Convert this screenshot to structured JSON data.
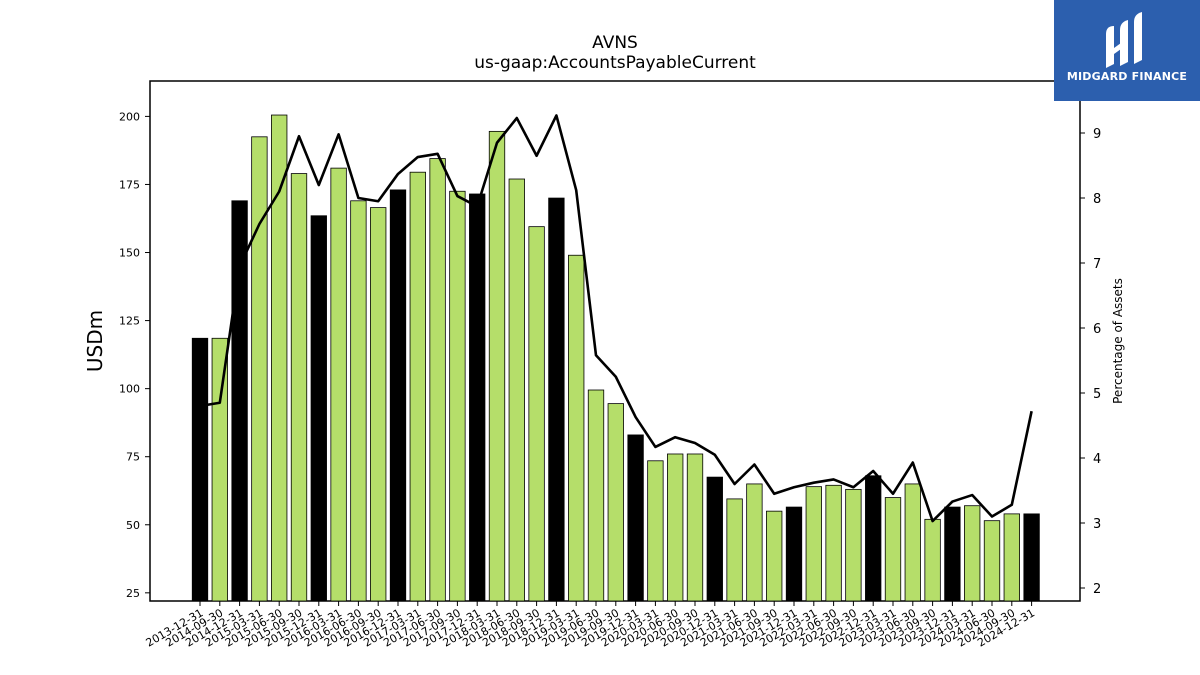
{
  "chart_data": {
    "type": "bar+line",
    "title": "AVNS",
    "subtitle": "us-gaap:AccountsPayableCurrent",
    "ylabel": "USDm",
    "y2label": "Percentage of Assets",
    "ylim": [
      22,
      213
    ],
    "y2lim": [
      1.8,
      9.8
    ],
    "yticks": [
      25,
      50,
      75,
      100,
      125,
      150,
      175,
      200
    ],
    "y2ticks": [
      2,
      3,
      4,
      5,
      6,
      7,
      8,
      9
    ],
    "categories": [
      "2013-12-31",
      "2014-09-30",
      "2014-12-31",
      "2015-03-31",
      "2015-06-30",
      "2015-09-30",
      "2015-12-31",
      "2016-03-31",
      "2016-06-30",
      "2016-09-30",
      "2016-12-31",
      "2017-03-31",
      "2017-06-30",
      "2017-09-30",
      "2017-12-31",
      "2018-03-31",
      "2018-06-30",
      "2018-09-30",
      "2018-12-31",
      "2019-03-31",
      "2019-06-30",
      "2019-09-30",
      "2019-12-31",
      "2020-03-31",
      "2020-06-30",
      "2020-09-30",
      "2020-12-31",
      "2021-03-31",
      "2021-06-30",
      "2021-09-30",
      "2021-12-31",
      "2022-03-31",
      "2022-06-30",
      "2022-09-30",
      "2022-12-31",
      "2023-03-31",
      "2023-06-30",
      "2023-09-30",
      "2023-12-31",
      "2024-03-31",
      "2024-06-30",
      "2024-09-30",
      "2024-12-31"
    ],
    "series": [
      {
        "type": "bar",
        "values": [
          118.5,
          118.5,
          169,
          192.5,
          200.5,
          179,
          163.5,
          181,
          169,
          166.5,
          173,
          179.5,
          184.5,
          172.5,
          171.5,
          194.5,
          177,
          159.5,
          170,
          149,
          99.5,
          94.5,
          83,
          73.5,
          76,
          76,
          67.5,
          59.5,
          65,
          55,
          56.5,
          64,
          64.5,
          63,
          68,
          60,
          65,
          52,
          56.5,
          57,
          51.5,
          54,
          54
        ],
        "annual": [
          true,
          false,
          true,
          false,
          false,
          false,
          true,
          false,
          false,
          false,
          true,
          false,
          false,
          false,
          true,
          false,
          false,
          false,
          true,
          false,
          false,
          false,
          true,
          false,
          false,
          false,
          true,
          false,
          false,
          false,
          true,
          false,
          false,
          false,
          true,
          false,
          false,
          false,
          true,
          false,
          false,
          false,
          true
        ]
      },
      {
        "type": "line",
        "axis": "y2",
        "values": [
          4.8,
          4.85,
          6.95,
          7.6,
          8.1,
          8.95,
          8.2,
          8.98,
          8.0,
          7.95,
          8.37,
          8.63,
          8.68,
          8.03,
          7.87,
          8.85,
          9.23,
          8.65,
          9.27,
          8.12,
          5.58,
          5.25,
          4.63,
          4.17,
          4.32,
          4.23,
          4.05,
          3.6,
          3.9,
          3.45,
          3.55,
          3.62,
          3.67,
          3.55,
          3.8,
          3.45,
          3.93,
          3.03,
          3.33,
          3.43,
          3.1,
          3.28,
          4.72
        ]
      }
    ],
    "colors": {
      "annual_bar": "#000000",
      "quarter_bar": "#b5de6a",
      "line": "#000000"
    },
    "grid": false
  },
  "branding": {
    "logo_text": "MIDGARD FINANCE",
    "logo_color": "#2c5fae"
  }
}
